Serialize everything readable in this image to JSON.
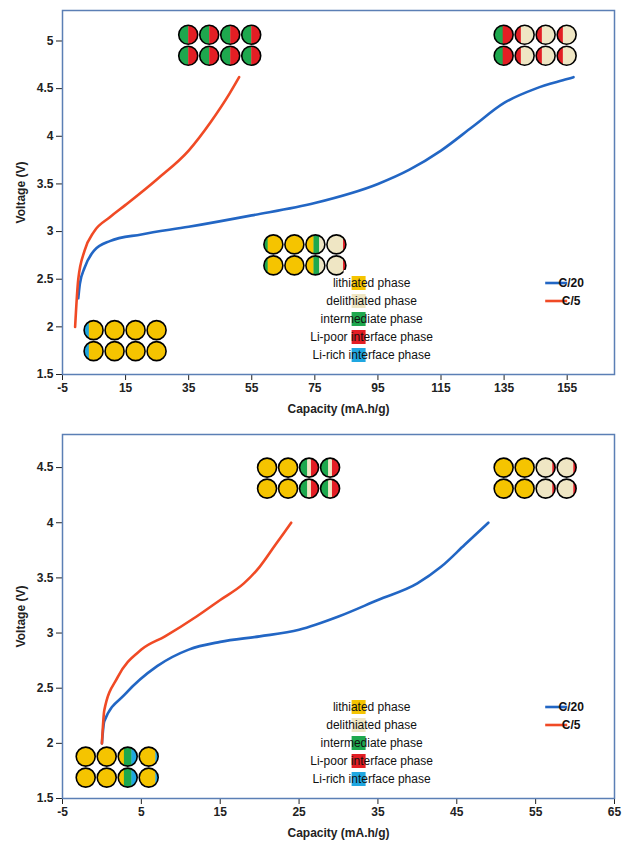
{
  "chart_data": [
    {
      "type": "line",
      "xlabel": "Capacity (mA.h/g)",
      "ylabel": "Voltage (V)",
      "xlim": [
        -5,
        170
      ],
      "xticks": [
        -5,
        15,
        35,
        55,
        75,
        95,
        115,
        135,
        155
      ],
      "ylim": [
        1.5,
        5.32
      ],
      "yticks": [
        1.5,
        2,
        2.5,
        3,
        3.5,
        4,
        4.5,
        5
      ],
      "legend": "lower right",
      "series": [
        {
          "name": "C/20",
          "color": "#2266c4",
          "x": [
            0,
            0.5,
            2,
            5,
            10,
            20,
            35,
            55,
            75,
            95,
            105,
            115,
            125,
            135,
            145,
            155,
            157
          ],
          "values": [
            2.3,
            2.45,
            2.62,
            2.8,
            2.9,
            2.97,
            3.05,
            3.17,
            3.3,
            3.5,
            3.65,
            3.85,
            4.1,
            4.35,
            4.5,
            4.6,
            4.62
          ]
        },
        {
          "name": "C/5",
          "color": "#f04a25",
          "x": [
            -1,
            0,
            2,
            5,
            10,
            15,
            25,
            35,
            42,
            48,
            51
          ],
          "values": [
            2.0,
            2.5,
            2.8,
            3.0,
            3.15,
            3.28,
            3.55,
            3.85,
            4.15,
            4.45,
            4.62
          ]
        }
      ],
      "phases": [
        {
          "name": "lithiated phase",
          "color": "#f5c400"
        },
        {
          "name": "delithiated phase",
          "color": "#efe6c4"
        },
        {
          "name": "intermediate phase",
          "color": "#1ea84e"
        },
        {
          "name": "Li-poor interface phase",
          "color": "#e31e24"
        },
        {
          "name": "Li-rich interface phase",
          "color": "#1fa7e1"
        }
      ],
      "particle_groups": [
        {
          "x": 15,
          "y": 1.85,
          "particles": [
            [
              {
                "phase": "Li-rich interface phase",
                "share": 0.25
              },
              {
                "phase": "lithiated phase",
                "share": 0.75
              }
            ],
            [
              {
                "phase": "lithiated phase",
                "share": 1
              }
            ],
            [
              {
                "phase": "lithiated phase",
                "share": 1
              }
            ],
            [
              {
                "phase": "lithiated phase",
                "share": 1
              }
            ],
            [
              {
                "phase": "Li-rich interface phase",
                "share": 0.25
              },
              {
                "phase": "lithiated phase",
                "share": 0.75
              }
            ],
            [
              {
                "phase": "lithiated phase",
                "share": 1
              }
            ],
            [
              {
                "phase": "lithiated phase",
                "share": 1
              }
            ],
            [
              {
                "phase": "lithiated phase",
                "share": 1
              }
            ]
          ]
        },
        {
          "x": 45,
          "y": 4.95,
          "particles": [
            [
              {
                "phase": "intermediate phase",
                "share": 0.5
              },
              {
                "phase": "Li-poor interface phase",
                "share": 0.5
              }
            ],
            [
              {
                "phase": "intermediate phase",
                "share": 0.5
              },
              {
                "phase": "Li-poor interface phase",
                "share": 0.5
              }
            ],
            [
              {
                "phase": "intermediate phase",
                "share": 0.5
              },
              {
                "phase": "Li-poor interface phase",
                "share": 0.5
              }
            ],
            [
              {
                "phase": "intermediate phase",
                "share": 0.5
              },
              {
                "phase": "Li-poor interface phase",
                "share": 0.5
              }
            ],
            [
              {
                "phase": "intermediate phase",
                "share": 0.5
              },
              {
                "phase": "Li-poor interface phase",
                "share": 0.5
              }
            ],
            [
              {
                "phase": "intermediate phase",
                "share": 0.5
              },
              {
                "phase": "Li-poor interface phase",
                "share": 0.5
              }
            ],
            [
              {
                "phase": "intermediate phase",
                "share": 0.5
              },
              {
                "phase": "Li-poor interface phase",
                "share": 0.5
              }
            ],
            [
              {
                "phase": "intermediate phase",
                "share": 0.5
              },
              {
                "phase": "Li-poor interface phase",
                "share": 0.5
              }
            ]
          ]
        },
        {
          "x": 72,
          "y": 2.75,
          "particles": [
            [
              {
                "phase": "intermediate phase",
                "share": 0.2
              },
              {
                "phase": "lithiated phase",
                "share": 0.8
              }
            ],
            [
              {
                "phase": "lithiated phase",
                "share": 1
              }
            ],
            [
              {
                "phase": "lithiated phase",
                "share": 0.4
              },
              {
                "phase": "intermediate phase",
                "share": 0.3
              },
              {
                "phase": "delithiated phase",
                "share": 0.3
              }
            ],
            [
              {
                "phase": "delithiated phase",
                "share": 0.85
              },
              {
                "phase": "Li-poor interface phase",
                "share": 0.15
              }
            ],
            [
              {
                "phase": "intermediate phase",
                "share": 0.2
              },
              {
                "phase": "lithiated phase",
                "share": 0.8
              }
            ],
            [
              {
                "phase": "lithiated phase",
                "share": 1
              }
            ],
            [
              {
                "phase": "lithiated phase",
                "share": 0.4
              },
              {
                "phase": "intermediate phase",
                "share": 0.3
              },
              {
                "phase": "delithiated phase",
                "share": 0.3
              }
            ],
            [
              {
                "phase": "delithiated phase",
                "share": 0.85
              },
              {
                "phase": "Li-poor interface phase",
                "share": 0.15
              }
            ]
          ]
        },
        {
          "x": 145,
          "y": 4.95,
          "particles": [
            [
              {
                "phase": "intermediate phase",
                "share": 0.45
              },
              {
                "phase": "Li-poor interface phase",
                "share": 0.55
              }
            ],
            [
              {
                "phase": "Li-poor interface phase",
                "share": 0.3
              },
              {
                "phase": "delithiated phase",
                "share": 0.7
              }
            ],
            [
              {
                "phase": "Li-poor interface phase",
                "share": 0.3
              },
              {
                "phase": "delithiated phase",
                "share": 0.7
              }
            ],
            [
              {
                "phase": "Li-poor interface phase",
                "share": 0.3
              },
              {
                "phase": "delithiated phase",
                "share": 0.7
              }
            ],
            [
              {
                "phase": "intermediate phase",
                "share": 0.45
              },
              {
                "phase": "Li-poor interface phase",
                "share": 0.55
              }
            ],
            [
              {
                "phase": "Li-poor interface phase",
                "share": 0.3
              },
              {
                "phase": "delithiated phase",
                "share": 0.7
              }
            ],
            [
              {
                "phase": "Li-poor interface phase",
                "share": 0.3
              },
              {
                "phase": "delithiated phase",
                "share": 0.7
              }
            ],
            [
              {
                "phase": "Li-poor interface phase",
                "share": 0.3
              },
              {
                "phase": "delithiated phase",
                "share": 0.7
              }
            ]
          ]
        }
      ]
    },
    {
      "type": "line",
      "xlabel": "Capacity (mA.h/g)",
      "ylabel": "Voltage (V)",
      "xlim": [
        -5,
        65
      ],
      "xticks": [
        -5,
        5,
        15,
        25,
        35,
        45,
        55,
        65
      ],
      "ylim": [
        1.5,
        4.8
      ],
      "yticks": [
        1.5,
        2,
        2.5,
        3,
        3.5,
        4,
        4.5
      ],
      "legend": "lower right",
      "series": [
        {
          "name": "C/20",
          "color": "#2266c4",
          "x": [
            0,
            0.3,
            3,
            7,
            11,
            15,
            20,
            25,
            30,
            35,
            40,
            43,
            46,
            49
          ],
          "values": [
            2.0,
            2.2,
            2.45,
            2.7,
            2.85,
            2.92,
            2.97,
            3.03,
            3.15,
            3.3,
            3.45,
            3.6,
            3.8,
            4.0
          ]
        },
        {
          "name": "C/5",
          "color": "#f04a25",
          "x": [
            0,
            0.3,
            2,
            5,
            8,
            12,
            15,
            18,
            20,
            22,
            24
          ],
          "values": [
            2.0,
            2.3,
            2.6,
            2.85,
            2.97,
            3.15,
            3.3,
            3.45,
            3.6,
            3.8,
            4.0
          ]
        }
      ],
      "phases": [
        {
          "name": "lithiated phase",
          "color": "#f5c400"
        },
        {
          "name": "delithiated phase",
          "color": "#efe6c4"
        },
        {
          "name": "intermediate phase",
          "color": "#1ea84e"
        },
        {
          "name": "Li-poor interface phase",
          "color": "#e31e24"
        },
        {
          "name": "Li-rich interface phase",
          "color": "#1fa7e1"
        }
      ],
      "particle_groups": [
        {
          "x": 2,
          "y": 1.78,
          "particles": [
            [
              {
                "phase": "lithiated phase",
                "share": 1
              }
            ],
            [
              {
                "phase": "lithiated phase",
                "share": 1
              }
            ],
            [
              {
                "phase": "lithiated phase",
                "share": 0.3
              },
              {
                "phase": "intermediate phase",
                "share": 0.4
              },
              {
                "phase": "Li-rich interface phase",
                "share": 0.3
              }
            ],
            [
              {
                "phase": "lithiated phase",
                "share": 0.85
              },
              {
                "phase": "Li-rich interface phase",
                "share": 0.15
              }
            ],
            [
              {
                "phase": "lithiated phase",
                "share": 1
              }
            ],
            [
              {
                "phase": "lithiated phase",
                "share": 1
              }
            ],
            [
              {
                "phase": "lithiated phase",
                "share": 0.3
              },
              {
                "phase": "intermediate phase",
                "share": 0.4
              },
              {
                "phase": "Li-rich interface phase",
                "share": 0.3
              }
            ],
            [
              {
                "phase": "lithiated phase",
                "share": 0.85
              },
              {
                "phase": "Li-rich interface phase",
                "share": 0.15
              }
            ]
          ]
        },
        {
          "x": 25,
          "y": 4.4,
          "particles": [
            [
              {
                "phase": "lithiated phase",
                "share": 1
              }
            ],
            [
              {
                "phase": "lithiated phase",
                "share": 1
              }
            ],
            [
              {
                "phase": "intermediate phase",
                "share": 0.4
              },
              {
                "phase": "delithiated phase",
                "share": 0.2
              },
              {
                "phase": "Li-poor interface phase",
                "share": 0.4
              }
            ],
            [
              {
                "phase": "intermediate phase",
                "share": 0.4
              },
              {
                "phase": "delithiated phase",
                "share": 0.2
              },
              {
                "phase": "Li-poor interface phase",
                "share": 0.4
              }
            ],
            [
              {
                "phase": "lithiated phase",
                "share": 1
              }
            ],
            [
              {
                "phase": "lithiated phase",
                "share": 1
              }
            ],
            [
              {
                "phase": "intermediate phase",
                "share": 0.4
              },
              {
                "phase": "delithiated phase",
                "share": 0.2
              },
              {
                "phase": "Li-poor interface phase",
                "share": 0.4
              }
            ],
            [
              {
                "phase": "intermediate phase",
                "share": 0.4
              },
              {
                "phase": "delithiated phase",
                "share": 0.2
              },
              {
                "phase": "Li-poor interface phase",
                "share": 0.4
              }
            ]
          ]
        },
        {
          "x": 55,
          "y": 4.4,
          "particles": [
            [
              {
                "phase": "lithiated phase",
                "share": 1
              }
            ],
            [
              {
                "phase": "lithiated phase",
                "share": 1
              }
            ],
            [
              {
                "phase": "delithiated phase",
                "share": 0.85
              },
              {
                "phase": "Li-poor interface phase",
                "share": 0.15
              }
            ],
            [
              {
                "phase": "delithiated phase",
                "share": 0.85
              },
              {
                "phase": "Li-poor interface phase",
                "share": 0.15
              }
            ],
            [
              {
                "phase": "lithiated phase",
                "share": 1
              }
            ],
            [
              {
                "phase": "lithiated phase",
                "share": 1
              }
            ],
            [
              {
                "phase": "delithiated phase",
                "share": 0.85
              },
              {
                "phase": "Li-poor interface phase",
                "share": 0.15
              }
            ],
            [
              {
                "phase": "delithiated phase",
                "share": 0.85
              },
              {
                "phase": "Li-poor interface phase",
                "share": 0.15
              }
            ]
          ]
        }
      ]
    }
  ]
}
